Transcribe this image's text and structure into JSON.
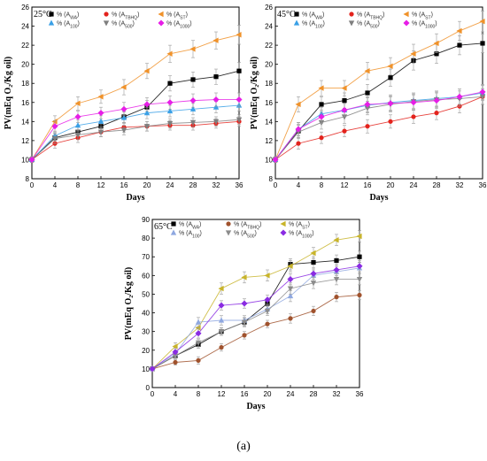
{
  "figure_label": "(a)",
  "chart_data": [
    {
      "type": "line",
      "temperature_label": "25°C",
      "xlabel": "Days",
      "ylabel": "PV(mEq O₂/Kg oil)",
      "xlim": [
        0,
        36
      ],
      "ylim": [
        8,
        26
      ],
      "xticks": [
        0,
        4,
        8,
        12,
        16,
        20,
        24,
        28,
        32,
        36
      ],
      "yticks": [
        8,
        10,
        12,
        14,
        16,
        18,
        20,
        22,
        24,
        26
      ],
      "legend_placement": "top-center",
      "x": [
        0,
        4,
        8,
        12,
        16,
        20,
        24,
        28,
        32,
        36
      ],
      "series": [
        {
          "name": "% (AWA)",
          "name_base": "% (A",
          "name_sub": "WA",
          "name_end": ")",
          "color": "#000000",
          "marker": "square",
          "values": [
            10.0,
            12.3,
            12.9,
            13.5,
            14.5,
            15.5,
            18.0,
            18.4,
            18.7,
            19.3
          ],
          "errors": [
            0.3,
            0.5,
            0.6,
            0.6,
            0.6,
            0.7,
            0.8,
            0.8,
            0.8,
            0.9
          ]
        },
        {
          "name": "% (ATBHQ)",
          "name_base": "% (A",
          "name_sub": "TBHQ",
          "name_end": ")",
          "color": "#e3221c",
          "marker": "circle",
          "values": [
            10.0,
            11.7,
            12.3,
            12.9,
            13.4,
            13.5,
            13.6,
            13.6,
            13.8,
            14.0
          ],
          "errors": [
            0.3,
            0.5,
            0.5,
            0.5,
            0.5,
            0.5,
            0.5,
            0.5,
            0.5,
            0.5
          ]
        },
        {
          "name": "% (AST)",
          "name_base": "% (A",
          "name_sub": "ST",
          "name_end": ")",
          "color": "#f0922a",
          "marker": "triangle-left",
          "values": [
            10.0,
            14.0,
            15.9,
            16.6,
            17.6,
            19.3,
            21.1,
            21.6,
            22.5,
            23.1
          ],
          "errors": [
            0.3,
            0.6,
            0.7,
            0.7,
            0.8,
            0.8,
            0.9,
            0.9,
            0.9,
            1.0
          ]
        },
        {
          "name": "% (A100)",
          "name_base": "% (A",
          "name_sub": "100",
          "name_end": ")",
          "color": "#3aa0e6",
          "marker": "triangle-up",
          "values": [
            10.0,
            12.5,
            13.6,
            14.0,
            14.4,
            14.9,
            15.1,
            15.3,
            15.5,
            15.7
          ],
          "errors": [
            0.3,
            0.5,
            0.6,
            0.6,
            0.6,
            0.6,
            0.6,
            0.6,
            0.6,
            0.6
          ]
        },
        {
          "name": "% (A500)",
          "name_base": "% (A",
          "name_sub": "500",
          "name_end": ")",
          "color": "#7f7f7f",
          "marker": "triangle-down",
          "values": [
            10.0,
            12.2,
            12.6,
            12.9,
            13.1,
            13.5,
            13.8,
            13.9,
            14.0,
            14.2
          ],
          "errors": [
            0.3,
            0.5,
            0.5,
            0.5,
            0.5,
            0.5,
            0.5,
            0.5,
            0.5,
            0.5
          ]
        },
        {
          "name": "% (A1000)",
          "name_base": "% (A",
          "name_sub": "1000",
          "name_end": ")",
          "color": "#e61ee6",
          "marker": "diamond",
          "values": [
            10.0,
            13.5,
            14.5,
            14.9,
            15.3,
            15.8,
            16.0,
            16.2,
            16.3,
            16.3
          ],
          "errors": [
            0.3,
            0.6,
            0.6,
            0.6,
            0.7,
            0.7,
            0.7,
            0.7,
            0.7,
            0.7
          ]
        }
      ]
    },
    {
      "type": "line",
      "temperature_label": "45°C",
      "xlabel": "Days",
      "ylabel": "PV(mEq O₂/Kg oil)",
      "xlim": [
        0,
        36
      ],
      "ylim": [
        8,
        26
      ],
      "xticks": [
        0,
        4,
        8,
        12,
        16,
        20,
        24,
        28,
        32,
        36
      ],
      "yticks": [
        8,
        10,
        12,
        14,
        16,
        18,
        20,
        22,
        24,
        26
      ],
      "legend_placement": "top-center",
      "x": [
        0,
        4,
        8,
        12,
        16,
        20,
        24,
        28,
        32,
        36
      ],
      "series": [
        {
          "name": "% (AWA)",
          "name_base": "% (A",
          "name_sub": "WA",
          "name_end": ")",
          "color": "#000000",
          "marker": "square",
          "values": [
            10.0,
            13.0,
            15.8,
            16.2,
            17.0,
            18.6,
            20.4,
            21.1,
            22.0,
            22.2
          ],
          "errors": [
            0.3,
            0.7,
            0.8,
            0.8,
            0.9,
            0.9,
            1.0,
            1.0,
            1.0,
            1.0
          ]
        },
        {
          "name": "% (ATBHQ)",
          "name_base": "% (A",
          "name_sub": "TBHQ",
          "name_end": ")",
          "color": "#e3221c",
          "marker": "circle",
          "values": [
            10.0,
            11.7,
            12.3,
            13.0,
            13.5,
            14.0,
            14.5,
            14.9,
            15.6,
            16.6
          ],
          "errors": [
            0.3,
            0.6,
            0.6,
            0.6,
            0.7,
            0.7,
            0.7,
            0.7,
            0.7,
            0.8
          ]
        },
        {
          "name": "% (AST)",
          "name_base": "% (A",
          "name_sub": "ST",
          "name_end": ")",
          "color": "#f0922a",
          "marker": "triangle-left",
          "values": [
            10.0,
            15.8,
            17.5,
            17.5,
            19.3,
            19.8,
            21.1,
            22.2,
            23.5,
            24.5
          ],
          "errors": [
            0.3,
            0.8,
            0.8,
            0.8,
            0.9,
            0.9,
            1.0,
            1.0,
            1.0,
            1.1
          ]
        },
        {
          "name": "% (A100)",
          "name_base": "% (A",
          "name_sub": "100",
          "name_end": ")",
          "color": "#3aa0e6",
          "marker": "triangle-up",
          "values": [
            10.0,
            13.2,
            14.8,
            15.2,
            15.7,
            16.0,
            16.2,
            16.4,
            16.6,
            17.0
          ],
          "errors": [
            0.3,
            0.7,
            0.7,
            0.7,
            0.8,
            0.8,
            0.8,
            0.8,
            0.8,
            0.8
          ]
        },
        {
          "name": "% (A500)",
          "name_base": "% (A",
          "name_sub": "500",
          "name_end": ")",
          "color": "#7f7f7f",
          "marker": "triangle-down",
          "values": [
            10.0,
            12.9,
            13.9,
            14.5,
            15.4,
            15.8,
            16.1,
            16.3,
            16.4,
            16.6
          ],
          "errors": [
            0.3,
            0.7,
            0.7,
            0.7,
            0.7,
            0.8,
            0.8,
            0.8,
            0.8,
            0.8
          ]
        },
        {
          "name": "% (A1000)",
          "name_base": "% (A",
          "name_sub": "1000",
          "name_end": ")",
          "color": "#e61ee6",
          "marker": "diamond",
          "values": [
            10.0,
            13.2,
            14.5,
            15.2,
            15.8,
            15.9,
            16.0,
            16.2,
            16.6,
            17.1
          ],
          "errors": [
            0.3,
            0.7,
            0.7,
            0.7,
            0.8,
            0.8,
            0.8,
            0.8,
            0.8,
            0.8
          ]
        }
      ]
    },
    {
      "type": "line",
      "temperature_label": "65°C",
      "xlabel": "Days",
      "ylabel": "PV(mEq O₂/Kg oil)",
      "xlim": [
        0,
        36
      ],
      "ylim": [
        0,
        90
      ],
      "xticks": [
        0,
        4,
        8,
        12,
        16,
        20,
        24,
        28,
        32,
        36
      ],
      "yticks": [
        0,
        10,
        20,
        30,
        40,
        50,
        60,
        70,
        80,
        90
      ],
      "legend_placement": "top-center",
      "x": [
        0,
        4,
        8,
        12,
        16,
        20,
        24,
        28,
        32,
        36
      ],
      "series": [
        {
          "name": "% (AWA)",
          "name_base": "% (A",
          "name_sub": "WA",
          "name_end": ")",
          "color": "#000000",
          "marker": "square",
          "values": [
            10.0,
            17.0,
            23.0,
            30.0,
            35.0,
            45.0,
            66.0,
            67.0,
            68.0,
            70.0
          ],
          "errors": [
            1.0,
            1.5,
            2.0,
            2.0,
            2.0,
            2.5,
            3.0,
            3.0,
            3.0,
            3.0
          ]
        },
        {
          "name": "% (ATBHQ)",
          "name_base": "% (A",
          "name_sub": "TBHQ",
          "name_end": ")",
          "color": "#a0522d",
          "marker": "circle",
          "values": [
            10.0,
            13.5,
            14.5,
            21.5,
            28.0,
            34.0,
            37.0,
            41.0,
            48.5,
            49.5
          ],
          "errors": [
            1.0,
            1.5,
            2.0,
            2.0,
            2.0,
            2.0,
            2.5,
            2.5,
            2.5,
            2.5
          ]
        },
        {
          "name": "% (AST)",
          "name_base": "% (A",
          "name_sub": "ST",
          "name_end": ")",
          "color": "#c8b42a",
          "marker": "triangle-left",
          "values": [
            10.0,
            22.0,
            32.0,
            53.0,
            59.0,
            60.0,
            65.0,
            72.0,
            79.0,
            81.0
          ],
          "errors": [
            1.0,
            2.0,
            2.5,
            3.0,
            3.0,
            3.0,
            3.0,
            3.0,
            3.0,
            3.0
          ]
        },
        {
          "name": "% (A100)",
          "name_base": "% (A",
          "name_sub": "100",
          "name_end": ")",
          "color": "#8fa8e0",
          "marker": "triangle-up",
          "values": [
            10.0,
            18.0,
            35.0,
            36.0,
            36.0,
            42.0,
            49.0,
            60.0,
            62.0,
            64.0
          ],
          "errors": [
            1.0,
            2.0,
            2.5,
            2.5,
            2.5,
            2.5,
            3.0,
            3.0,
            3.0,
            3.0
          ]
        },
        {
          "name": "% (A500)",
          "name_base": "% (A",
          "name_sub": "500",
          "name_end": ")",
          "color": "#8c8c8c",
          "marker": "triangle-down",
          "values": [
            10.0,
            17.0,
            24.0,
            30.0,
            35.0,
            41.0,
            53.0,
            56.0,
            58.0,
            58.0
          ],
          "errors": [
            1.0,
            1.5,
            2.0,
            2.0,
            2.5,
            2.5,
            3.0,
            3.0,
            3.0,
            3.0
          ]
        },
        {
          "name": "% (A1000)",
          "name_base": "% (A",
          "name_sub": "1000",
          "name_end": ")",
          "color": "#8a2be2",
          "marker": "diamond",
          "values": [
            10.0,
            19.0,
            29.0,
            44.0,
            45.0,
            47.0,
            58.0,
            61.0,
            63.0,
            65.0
          ],
          "errors": [
            1.0,
            2.0,
            2.5,
            2.5,
            2.5,
            2.5,
            3.0,
            3.0,
            3.0,
            3.0
          ]
        }
      ]
    }
  ]
}
